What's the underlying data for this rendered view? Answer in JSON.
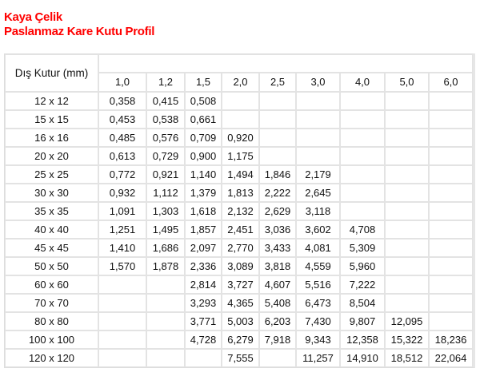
{
  "header": {
    "company": "Kaya Çelik",
    "title": "Paslanmaz Kare Kutu Profil"
  },
  "colors": {
    "title": "#ff0000"
  },
  "table": {
    "row_header": "Dış Kutur (mm)",
    "thicknesses": [
      "1,0",
      "1,2",
      "1,5",
      "2,0",
      "2,5",
      "3,0",
      "4,0",
      "5,0",
      "6,0"
    ],
    "rows": [
      {
        "size": "12 x 12",
        "values": [
          "0,358",
          "0,415",
          "0,508",
          "",
          "",
          "",
          "",
          "",
          ""
        ]
      },
      {
        "size": "15 x 15",
        "values": [
          "0,453",
          "0,538",
          "0,661",
          "",
          "",
          "",
          "",
          "",
          ""
        ]
      },
      {
        "size": "16 x 16",
        "values": [
          "0,485",
          "0,576",
          "0,709",
          "0,920",
          "",
          "",
          "",
          "",
          ""
        ]
      },
      {
        "size": "20 x 20",
        "values": [
          "0,613",
          "0,729",
          "0,900",
          "1,175",
          "",
          "",
          "",
          "",
          ""
        ]
      },
      {
        "size": "25 x 25",
        "values": [
          "0,772",
          "0,921",
          "1,140",
          "1,494",
          "1,846",
          "2,179",
          "",
          "",
          ""
        ]
      },
      {
        "size": "30 x 30",
        "values": [
          "0,932",
          "1,112",
          "1,379",
          "1,813",
          "2,222",
          "2,645",
          "",
          "",
          ""
        ]
      },
      {
        "size": "35 x 35",
        "values": [
          "1,091",
          "1,303",
          "1,618",
          "2,132",
          "2,629",
          "3,118",
          "",
          "",
          ""
        ]
      },
      {
        "size": "40 x 40",
        "values": [
          "1,251",
          "1,495",
          "1,857",
          "2,451",
          "3,036",
          "3,602",
          "4,708",
          "",
          ""
        ]
      },
      {
        "size": "45 x 45",
        "values": [
          "1,410",
          "1,686",
          "2,097",
          "2,770",
          "3,433",
          "4,081",
          "5,309",
          "",
          ""
        ]
      },
      {
        "size": "50 x 50",
        "values": [
          "1,570",
          "1,878",
          "2,336",
          "3,089",
          "3,818",
          "4,559",
          "5,960",
          "",
          ""
        ]
      },
      {
        "size": "60 x 60",
        "values": [
          "",
          "",
          "2,814",
          "3,727",
          "4,607",
          "5,516",
          "7,222",
          "",
          ""
        ]
      },
      {
        "size": "70 x 70",
        "values": [
          "",
          "",
          "3,293",
          "4,365",
          "5,408",
          "6,473",
          "8,504",
          "",
          ""
        ]
      },
      {
        "size": "80 x 80",
        "values": [
          "",
          "",
          "3,771",
          "5,003",
          "6,203",
          "7,430",
          "9,807",
          "12,095",
          ""
        ]
      },
      {
        "size": "100 x 100",
        "values": [
          "",
          "",
          "4,728",
          "6,279",
          "7,918",
          "9,343",
          "12,358",
          "15,322",
          "18,236"
        ]
      },
      {
        "size": "120 x 120",
        "values": [
          "",
          "",
          "",
          "7,555",
          "",
          "11,257",
          "14,910",
          "18,512",
          "22,064"
        ]
      }
    ]
  }
}
